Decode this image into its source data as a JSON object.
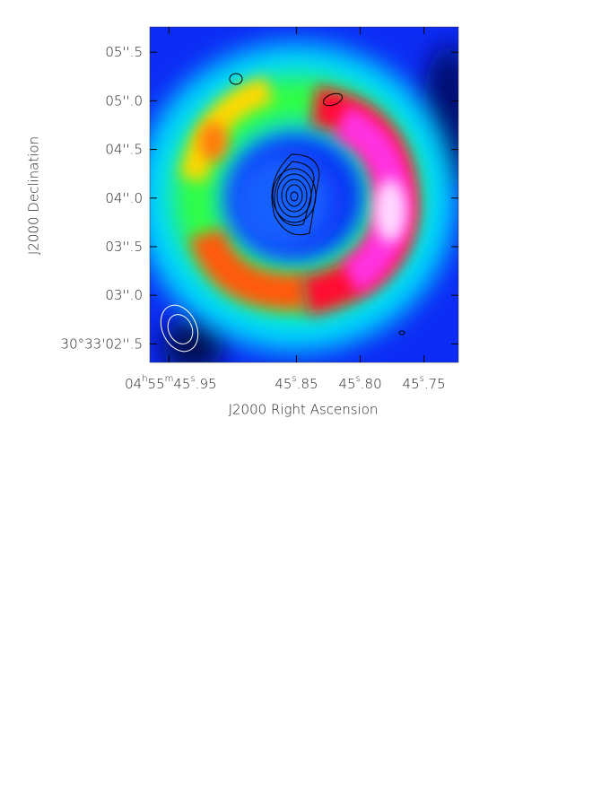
{
  "chart_data": {
    "type": "image",
    "xlabel": "J2000 Right Ascension",
    "ylabel": "J2000 Declination",
    "xlim": [
      45.965,
      45.723
    ],
    "ylim": [
      2.31,
      5.76
    ],
    "xticks": [
      {
        "value": 45.95,
        "label": "04h55m45s.95"
      },
      {
        "value": 45.85,
        "label": "45s.85"
      },
      {
        "value": 45.8,
        "label": "45s.80"
      },
      {
        "value": 45.75,
        "label": "45s.75"
      }
    ],
    "yticks": [
      {
        "value": 5.5,
        "label": "05''.5"
      },
      {
        "value": 5.0,
        "label": "05''.0"
      },
      {
        "value": 4.5,
        "label": "04''.5"
      },
      {
        "value": 4.0,
        "label": "04''.0"
      },
      {
        "value": 3.5,
        "label": "03''.5"
      },
      {
        "value": 3.0,
        "label": "03''.0"
      },
      {
        "value": 2.5,
        "label": "30°33'02''.5"
      }
    ]
  }
}
